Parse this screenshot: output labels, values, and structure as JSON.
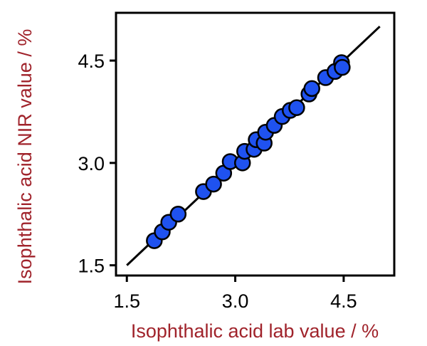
{
  "chart_data": {
    "type": "scatter",
    "xlabel": "Isophthalic acid lab value / %",
    "ylabel": "Isophthalic acid NIR value / %",
    "xlim": [
      1.35,
      5.2
    ],
    "ylim": [
      1.35,
      5.2
    ],
    "xticks": [
      "1.5",
      "3.0",
      "4.5"
    ],
    "yticks": [
      "1.5",
      "3.0",
      "4.5"
    ],
    "xtick_values": [
      1.5,
      3.0,
      4.5
    ],
    "ytick_values": [
      1.5,
      3.0,
      4.5
    ],
    "grid": false,
    "fit_line": {
      "x": [
        1.5,
        5.0
      ],
      "y": [
        1.5,
        5.0
      ]
    },
    "points": [
      {
        "x": 1.88,
        "y": 1.86
      },
      {
        "x": 1.99,
        "y": 1.99
      },
      {
        "x": 2.08,
        "y": 2.13
      },
      {
        "x": 2.21,
        "y": 2.25
      },
      {
        "x": 2.56,
        "y": 2.58
      },
      {
        "x": 2.7,
        "y": 2.69
      },
      {
        "x": 2.84,
        "y": 2.85
      },
      {
        "x": 2.93,
        "y": 3.02
      },
      {
        "x": 3.1,
        "y": 3.0
      },
      {
        "x": 3.13,
        "y": 3.17
      },
      {
        "x": 3.26,
        "y": 3.2
      },
      {
        "x": 3.29,
        "y": 3.34
      },
      {
        "x": 3.4,
        "y": 3.29
      },
      {
        "x": 3.42,
        "y": 3.45
      },
      {
        "x": 3.54,
        "y": 3.55
      },
      {
        "x": 3.65,
        "y": 3.68
      },
      {
        "x": 3.76,
        "y": 3.77
      },
      {
        "x": 3.85,
        "y": 3.81
      },
      {
        "x": 4.02,
        "y": 4.01
      },
      {
        "x": 4.06,
        "y": 4.09
      },
      {
        "x": 4.25,
        "y": 4.25
      },
      {
        "x": 4.38,
        "y": 4.34
      },
      {
        "x": 4.47,
        "y": 4.47
      },
      {
        "x": 4.48,
        "y": 4.4
      }
    ],
    "colors": {
      "points": "#1f52f0",
      "point_edge": "#000000",
      "line": "#000000",
      "axis_titles": "#a0232b"
    }
  }
}
